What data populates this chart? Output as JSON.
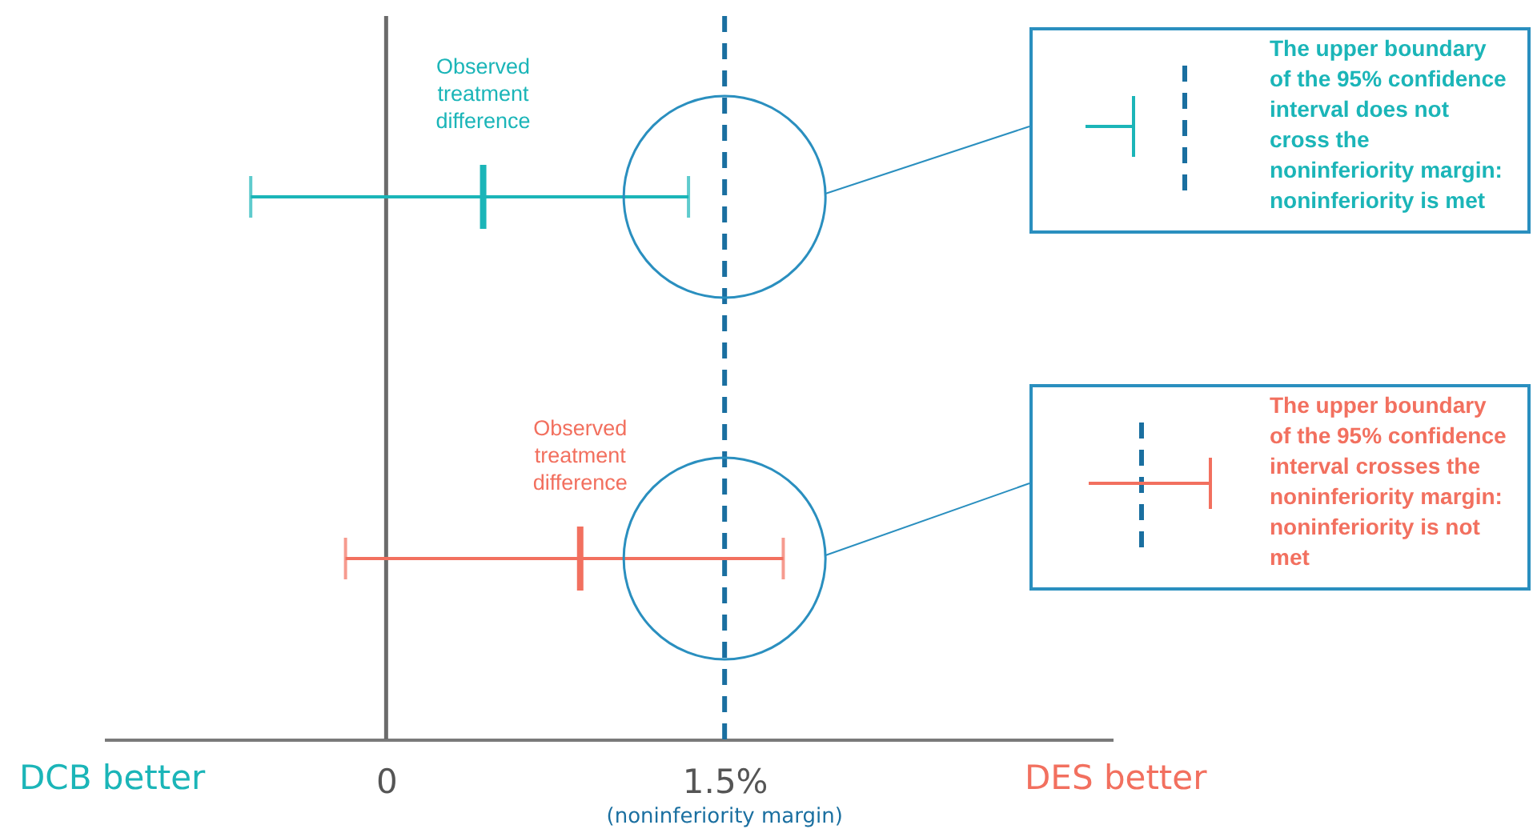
{
  "chart_data": {
    "type": "scatter",
    "orientation": "horizontal",
    "categories": [
      null,
      null
    ],
    "series": [
      {
        "color": "#1bb5b8",
        "values": [
          0.43,
          null
        ],
        "errors": [
          [
            -0.6,
            1.34
          ],
          null
        ]
      },
      {
        "color": "#f2705f",
        "values": [
          null,
          0.86
        ],
        "errors": [
          null,
          [
            -0.18,
            1.76
          ]
        ]
      }
    ],
    "xlim": [
      -1.25,
      3.22
    ],
    "xticks": [
      0,
      {
        "value": 1.5,
        "label": "1.5%"
      }
    ],
    "tick_labels": "x",
    "grid": false,
    "ref_lines": [
      {
        "axis": "x",
        "value": 0,
        "color": "#6b6b6b",
        "line_style": "solid"
      },
      {
        "axis": "x",
        "value": 1.5,
        "label": "(noninferiority margin)",
        "color": "#1a6fa0",
        "line_style": "dashed"
      }
    ],
    "annotations": [
      "Observed treatment difference",
      "Observed treatment difference",
      "The upper boundary of the 95% confidence interval does not cross the noninferiority margin: noninferiority is met",
      "The upper boundary of the 95% confidence interval crosses the noninferiority margin: noninferiority is not met",
      "DCB better",
      "DES better"
    ]
  }
}
